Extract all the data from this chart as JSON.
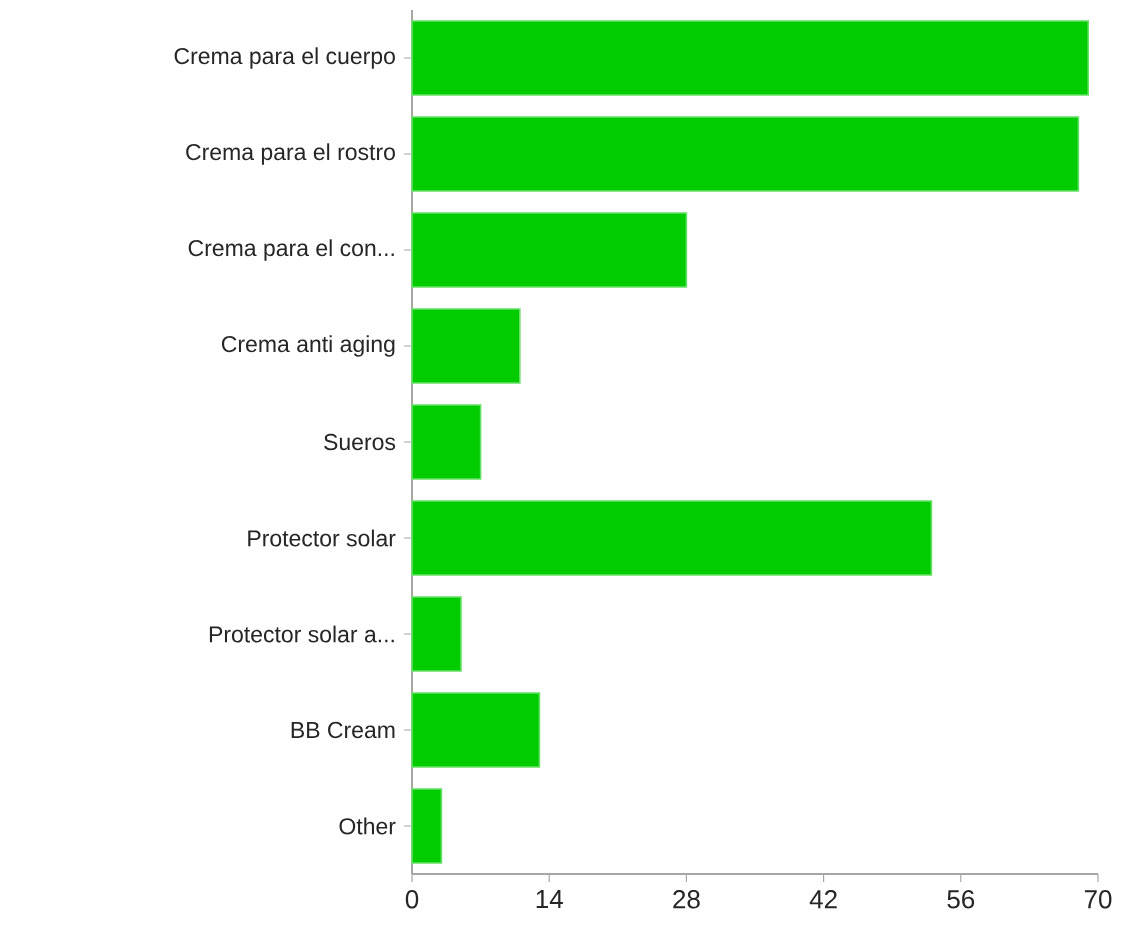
{
  "chart_data": {
    "type": "bar",
    "orientation": "horizontal",
    "categories": [
      "Crema para el cuerpo",
      "Crema para el rostro",
      "Crema para el con...",
      "Crema anti aging",
      "Sueros",
      "Protector solar",
      "Protector solar a...",
      "BB Cream",
      "Other"
    ],
    "values": [
      69,
      68,
      28,
      11,
      7,
      53,
      5,
      13,
      3
    ],
    "color": "#00cc00",
    "xlim": [
      0,
      70
    ],
    "xticks": [
      0,
      14,
      28,
      42,
      56,
      70
    ]
  }
}
